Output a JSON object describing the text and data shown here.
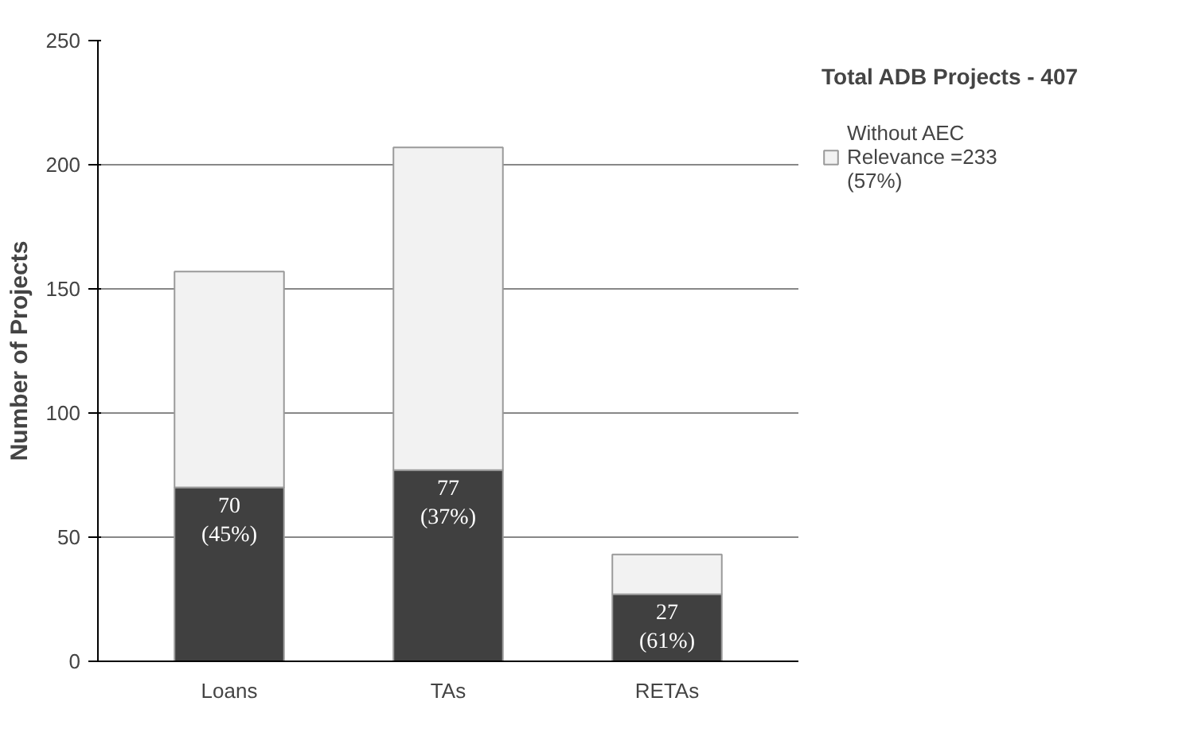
{
  "chart_data": {
    "type": "bar",
    "title": "Total ADB Projects - 407",
    "ylabel": "Number of Projects",
    "categories": [
      "Loans",
      "TAs",
      "RETAs"
    ],
    "stacked": true,
    "series": [
      {
        "color": "#404040",
        "values": [
          70,
          77,
          27
        ],
        "value_labels": [
          "70 (45%)",
          "77 (37%)",
          "27 (61%)"
        ]
      },
      {
        "name": "Without AEC Relevance =233 (57%)",
        "color": "#f2f2f2",
        "values": [
          87,
          130,
          16
        ]
      }
    ],
    "ylim": [
      0,
      250
    ],
    "yticks": [
      0,
      50,
      100,
      150,
      200,
      250
    ],
    "grid": "y",
    "legend": "right"
  }
}
